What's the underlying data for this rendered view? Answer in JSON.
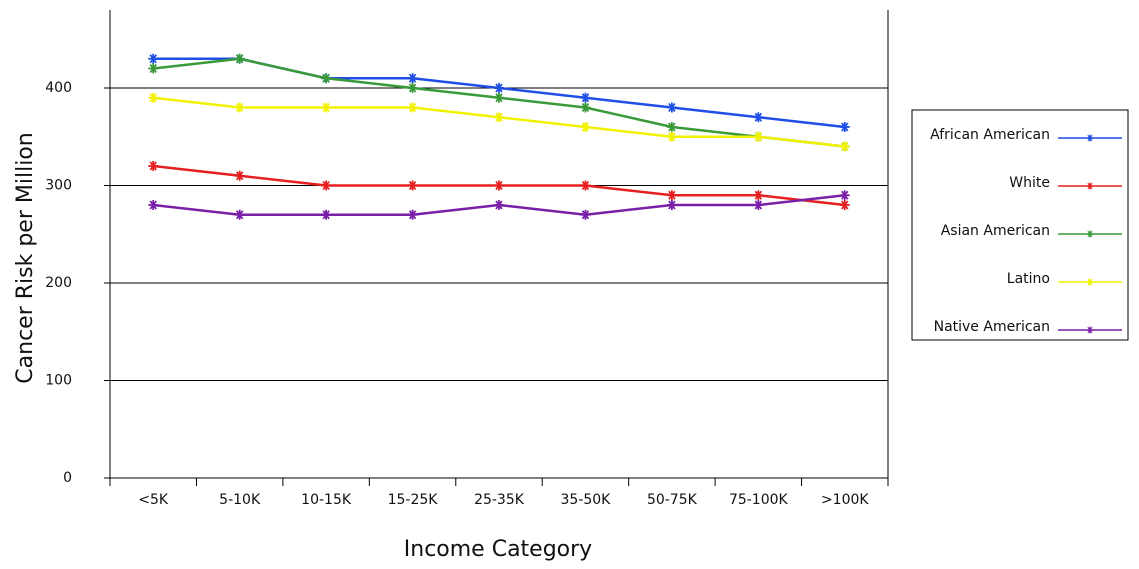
{
  "chart_data": {
    "type": "line",
    "x_label": "Income Category",
    "y_label": "Cancer Risk per Million",
    "categories": [
      "<5K",
      "5-10K",
      "10-15K",
      "15-25K",
      "25-35K",
      "35-50K",
      "50-75K",
      "75-100K",
      ">100K"
    ],
    "series": [
      {
        "name": "African American",
        "color": "#1f4fe6",
        "values": [
          430,
          430,
          410,
          410,
          400,
          390,
          380,
          370,
          360
        ]
      },
      {
        "name": "White",
        "color": "#e62020",
        "values": [
          320,
          310,
          300,
          300,
          300,
          300,
          290,
          290,
          280
        ]
      },
      {
        "name": "Asian American",
        "color": "#3a9a3a",
        "values": [
          420,
          430,
          410,
          400,
          390,
          380,
          360,
          350,
          340
        ]
      },
      {
        "name": "Latino",
        "color": "#f2f200",
        "values": [
          390,
          380,
          380,
          380,
          370,
          360,
          350,
          350,
          340
        ]
      },
      {
        "name": "Native American",
        "color": "#7a1fa8",
        "values": [
          280,
          270,
          270,
          270,
          280,
          270,
          280,
          280,
          290
        ]
      }
    ],
    "ylim": [
      0,
      480
    ],
    "yticks": [
      0,
      100,
      200,
      300,
      400
    ],
    "grid": true,
    "legend": "right"
  }
}
